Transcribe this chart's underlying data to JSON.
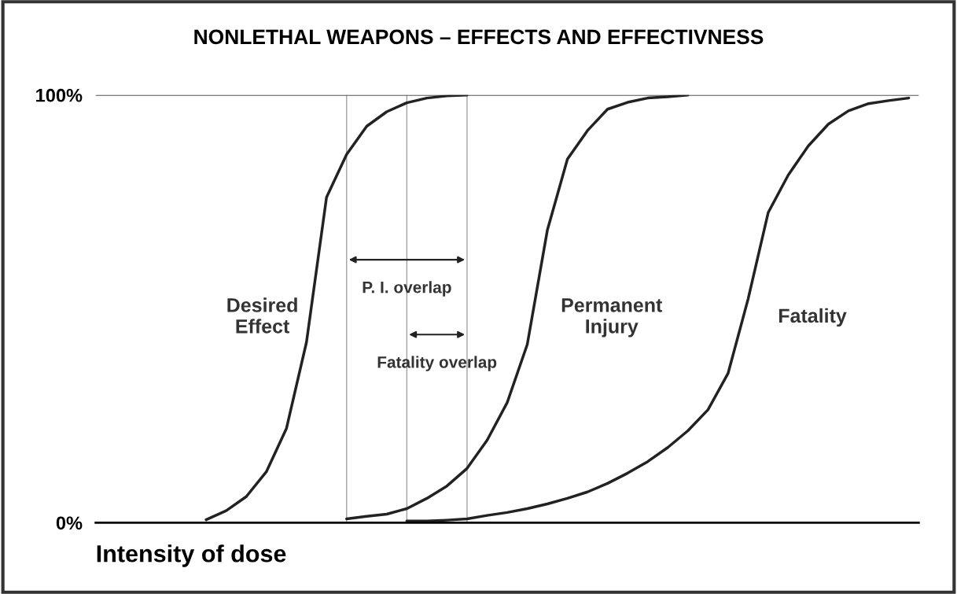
{
  "chart_data": {
    "type": "line",
    "title": "NONLETHAL WEAPONS – EFFECTS AND EFFECTIVNESS",
    "xlabel": "Intensity of dose",
    "categories": [
      null,
      null,
      null,
      null,
      null,
      null,
      null,
      null,
      null,
      null,
      null,
      null,
      null,
      null,
      null,
      null,
      null,
      null,
      null,
      null,
      null,
      null,
      null,
      null,
      null,
      null,
      null,
      null,
      null,
      null,
      null,
      null,
      null,
      null,
      null,
      null,
      null
    ],
    "ylim": [
      0,
      100
    ],
    "yticks": [
      {
        "value": 0,
        "label": "0%"
      },
      {
        "value": 100,
        "label": "100%"
      }
    ],
    "tick_labels": "y",
    "series": [
      {
        "name": "Desired\nEffect",
        "color": "#222222",
        "values": [
          null,
          0.7,
          2.8,
          6.1,
          11.9,
          22.0,
          42.2,
          76.1,
          86.1,
          92.7,
          96.1,
          98.2,
          99.3,
          99.8,
          100,
          null,
          null,
          null,
          null,
          null,
          null,
          null,
          null,
          null,
          null,
          null,
          null,
          null,
          null,
          null,
          null,
          null,
          null,
          null,
          null,
          null,
          null
        ]
      },
      {
        "name": "Permanent\nInjury",
        "color": "#222222",
        "values": [
          null,
          null,
          null,
          null,
          null,
          null,
          null,
          null,
          0.9,
          1.5,
          2.0,
          3.3,
          5.7,
          8.6,
          12.7,
          19.3,
          28.1,
          41.7,
          68.4,
          85.0,
          91.7,
          96.7,
          98.3,
          99.3,
          99.6,
          100,
          null,
          null,
          null,
          null,
          null,
          null,
          null,
          null,
          null,
          null,
          null
        ]
      },
      {
        "name": "Fatality",
        "color": "#222222",
        "values": [
          null,
          null,
          null,
          null,
          null,
          null,
          null,
          null,
          null,
          null,
          null,
          0.4,
          0.4,
          0.6,
          0.9,
          1.7,
          2.4,
          3.3,
          4.4,
          5.7,
          7.2,
          9.2,
          11.6,
          14.3,
          17.6,
          21.5,
          26.4,
          34.9,
          52.3,
          72.5,
          81.3,
          88.1,
          93.2,
          96.3,
          98.0,
          98.7,
          99.3
        ]
      }
    ],
    "grid": true,
    "annotations": [
      "P. I. overlap",
      "Fatality overlap"
    ]
  }
}
